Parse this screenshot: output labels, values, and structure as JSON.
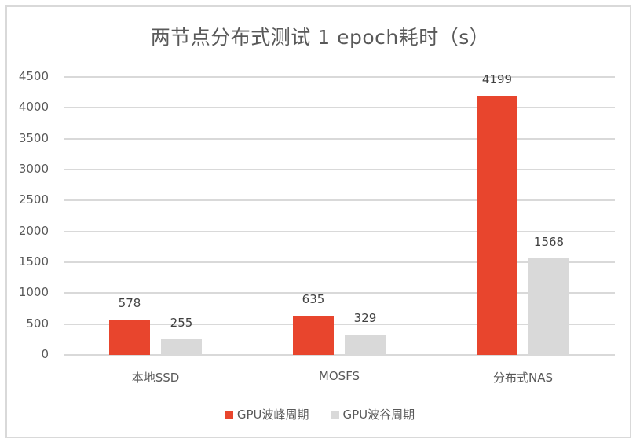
{
  "chart_data": {
    "type": "bar",
    "title": "两节点分布式测试 1 epoch耗时（s）",
    "categories": [
      "本地SSD",
      "MOSFS",
      "分布式NAS"
    ],
    "series": [
      {
        "name": "GPU波峰周期",
        "color": "#e8452d",
        "values": [
          578,
          635,
          4199
        ]
      },
      {
        "name": "GPU波谷周期",
        "color": "#d9d9d9",
        "values": [
          255,
          329,
          1568
        ]
      }
    ],
    "xlabel": "",
    "ylabel": "",
    "ylim": [
      0,
      4500
    ],
    "yticks": [
      0,
      500,
      1000,
      1500,
      2000,
      2500,
      3000,
      3500,
      4000,
      4500
    ],
    "grid": true,
    "legend_position": "bottom",
    "data_labels": true
  }
}
